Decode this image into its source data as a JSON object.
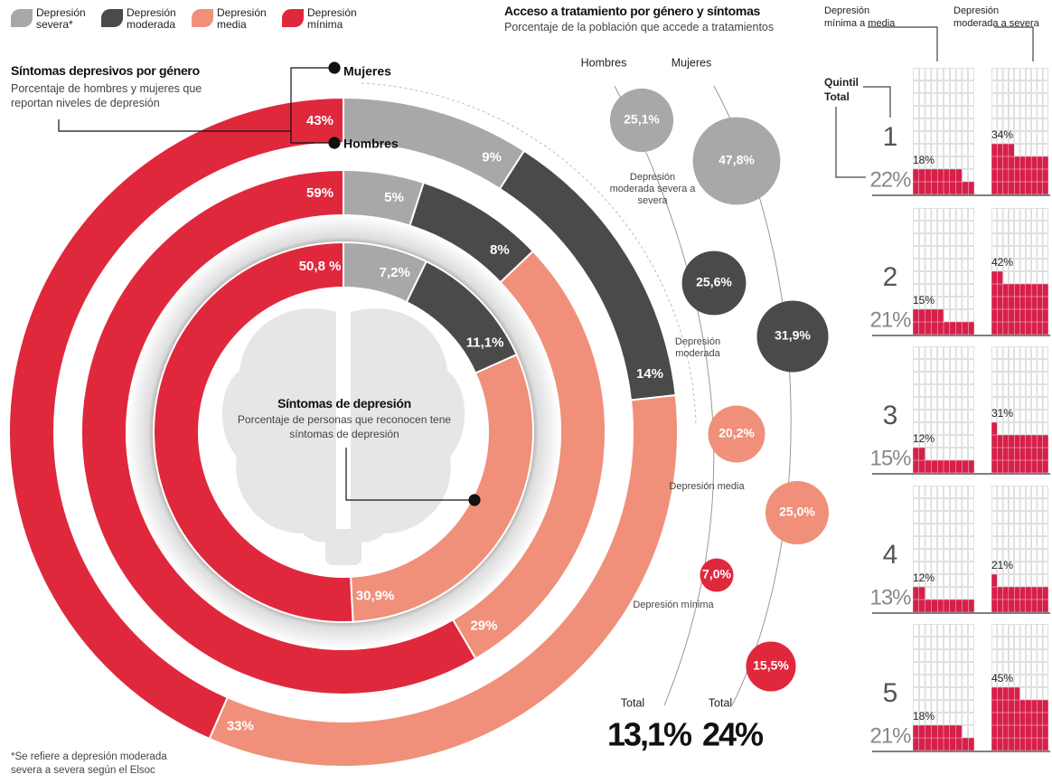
{
  "chart_data": [
    {
      "type": "donut",
      "title": "Síntomas depresivos por género",
      "subtitle": "Porcentaje de hombres y mujeres que reportan niveles de depresión",
      "center_title": "Síntomas de depresión",
      "center_subtitle": "Porcentaje de personas que reconocen tene síntomas de depresión",
      "categories": [
        "Depresión severa*",
        "Depresión moderada",
        "Depresión media",
        "Depresión mínima"
      ],
      "colors": [
        "#a8a8a8",
        "#4a4a4a",
        "#f0907a",
        "#e0283c"
      ],
      "series": [
        {
          "name": "Mujeres",
          "values": [
            9,
            14,
            33,
            43
          ],
          "value_labels": [
            "9%",
            "14%",
            "33%",
            "43%"
          ]
        },
        {
          "name": "Hombres",
          "values": [
            5,
            8,
            29,
            59
          ],
          "value_labels": [
            "5%",
            "8%",
            "29%",
            "59%"
          ]
        },
        {
          "values": [
            7.2,
            11.1,
            30.9,
            50.8
          ],
          "value_labels": [
            "7,2%",
            "11,1%",
            "30,9%",
            "50,8 %"
          ]
        }
      ],
      "footnote": "*Se refiere a depresión moderada severa a severa según el Elsoc"
    },
    {
      "type": "bubble",
      "title": "Acceso a tratamiento por género y síntomas",
      "subtitle": "Porcentaje de la población que accede a tratamientos",
      "categories": [
        "Depresión moderada severa a severa",
        "Depresión moderada",
        "Depresión media",
        "Depresión mínima"
      ],
      "colors": [
        "#a8a8a8",
        "#4a4a4a",
        "#f0907a",
        "#e0283c"
      ],
      "total_name": "Total",
      "series": [
        {
          "name": "Hombres",
          "values": [
            25.1,
            25.6,
            20.2,
            7.0
          ],
          "value_labels": [
            "25,1%",
            "25,6%",
            "20,2%",
            "7,0%"
          ],
          "total": 13.1,
          "total_label": "13,1%"
        },
        {
          "name": "Mujeres",
          "values": [
            47.8,
            31.9,
            25.0,
            15.5
          ],
          "value_labels": [
            "47,8%",
            "31,9%",
            "25,0%",
            "15,5%"
          ],
          "total": 24,
          "total_label": "24%"
        }
      ]
    },
    {
      "type": "waffle",
      "category_axis_label": "Quintil",
      "total_name": "Total",
      "categories": [
        "1",
        "2",
        "3",
        "4",
        "5"
      ],
      "totals": [
        22,
        21,
        15,
        13,
        21
      ],
      "total_labels": [
        "22%",
        "21%",
        "15%",
        "13%",
        "21%"
      ],
      "color": "#d6204a",
      "series": [
        {
          "name": "Depresión mínima a media",
          "values": [
            18,
            15,
            12,
            12,
            18
          ],
          "value_labels": [
            "18%",
            "15%",
            "12%",
            "12%",
            "18%"
          ]
        },
        {
          "name": "Depresión moderada a severa",
          "values": [
            34,
            42,
            31,
            21,
            45
          ],
          "value_labels": [
            "34%",
            "42%",
            "31%",
            "21%",
            "45%"
          ]
        }
      ]
    }
  ]
}
